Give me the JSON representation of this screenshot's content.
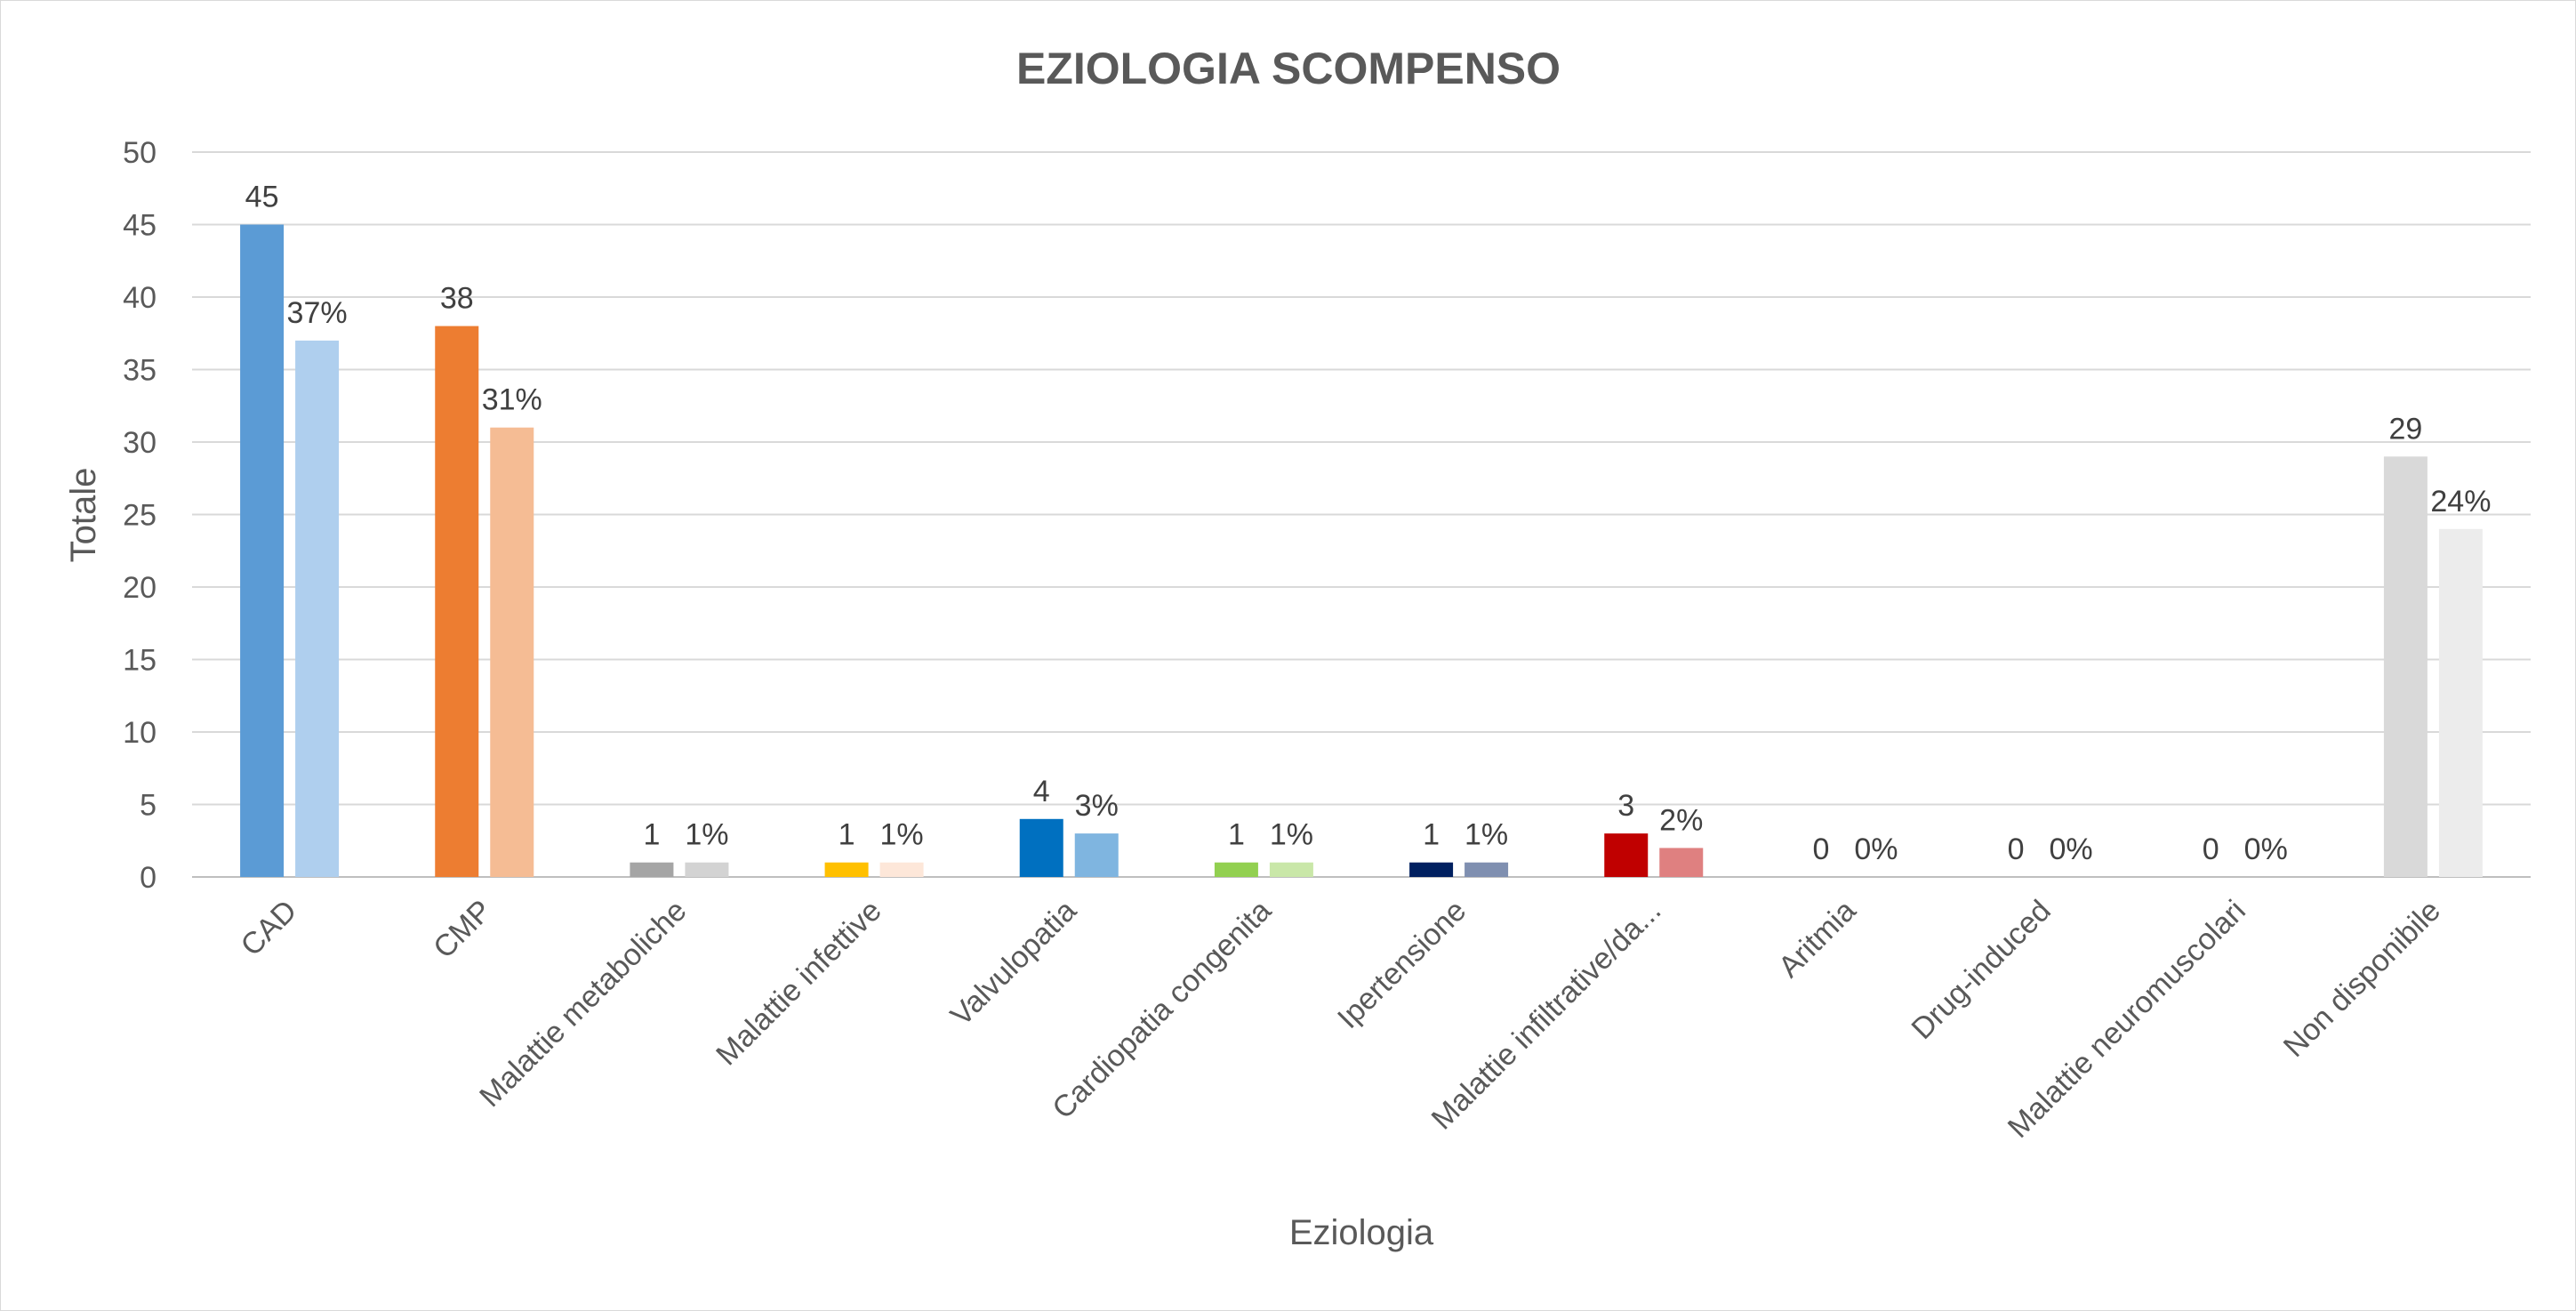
{
  "chart_data": {
    "type": "bar",
    "title": "EZIOLOGIA SCOMPENSO",
    "xlabel": "Eziologia",
    "ylabel": "Totale",
    "ylim": [
      0,
      50
    ],
    "y_ticks": [
      0,
      5,
      10,
      15,
      20,
      25,
      30,
      35,
      40,
      45,
      50
    ],
    "grid": "horizontal",
    "legend": "none",
    "categories": [
      "CAD",
      "CMP",
      "Malattie metaboliche",
      "Malattie infettive",
      "Valvulopatia",
      "Cardiopatia congenita",
      "Ipertensione",
      "Malattie infiltrative/da...",
      "Aritmia",
      "Drug-induced",
      "Malattie neuromuscolari",
      "Non disponibile"
    ],
    "series": [
      {
        "values": [
          45,
          38,
          1,
          1,
          4,
          1,
          1,
          3,
          0,
          0,
          0,
          29
        ],
        "data_labels": [
          "45",
          "38",
          "1",
          "1",
          "4",
          "1",
          "1",
          "3",
          "0",
          "0",
          "0",
          "29"
        ]
      },
      {
        "values": [
          37,
          31,
          1,
          1,
          3,
          1,
          1,
          2,
          0,
          0,
          0,
          24
        ],
        "data_labels": [
          "37%",
          "31%",
          "1%",
          "1%",
          "3%",
          "1%",
          "1%",
          "2%",
          "0%",
          "0%",
          "0%",
          "24%"
        ]
      }
    ],
    "colors": {
      "primary": [
        "#5b9bd5",
        "#ed7d31",
        "#a5a5a5",
        "#ffc000",
        "#0070c0",
        "#92d050",
        "#002060",
        "#c00000",
        "#7030a0",
        "#00b050",
        "#1f4e79",
        "#d9d9d9"
      ],
      "secondary": [
        "#afcfee",
        "#f5bc94",
        "#d3d3d3",
        "#fde7d9",
        "#7fb5e0",
        "#c9e7a8",
        "#7f8fb0",
        "#df8080",
        "#b797cf",
        "#7fd7a7",
        "#8fa6bc",
        "#ececec"
      ]
    }
  }
}
